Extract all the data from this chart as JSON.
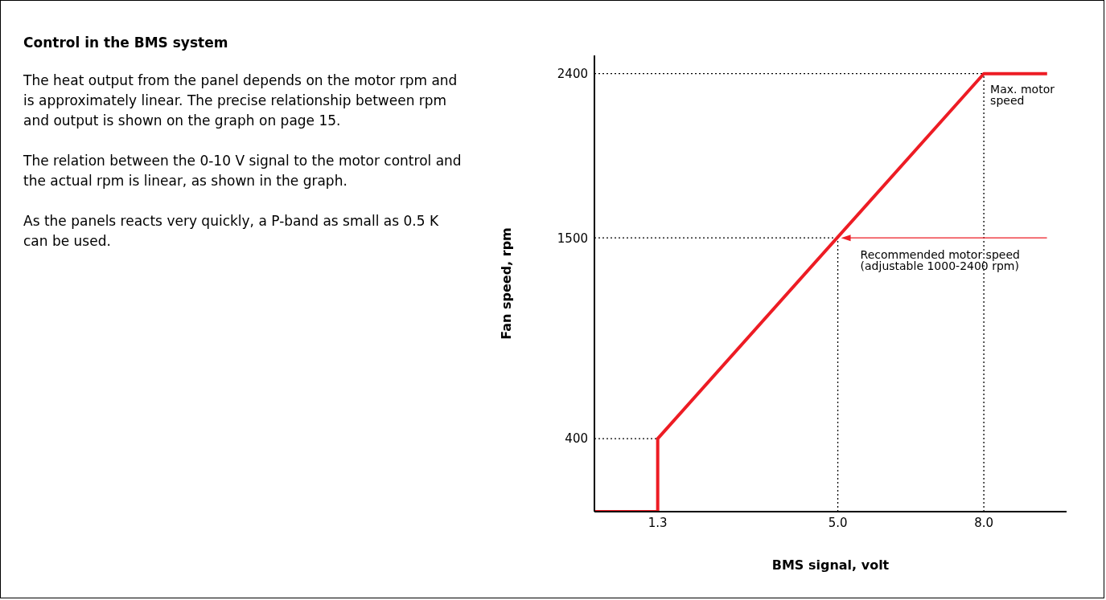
{
  "chart_data": {
    "type": "line",
    "title": "Control in the BMS system",
    "xlabel": "BMS signal, volt",
    "ylabel": "Fan speed, rpm",
    "x": [
      0,
      1.3,
      1.3,
      8.0,
      9.3
    ],
    "series": [
      {
        "color": "#ed1c24",
        "values": [
          0,
          0,
          400,
          2400,
          2400
        ]
      }
    ],
    "xlim": [
      0,
      9.7
    ],
    "xticks": [
      1.3,
      {
        "value": 5,
        "label": "5.0"
      },
      {
        "value": 8,
        "label": "8.0"
      }
    ],
    "ylim": [
      0,
      2500
    ],
    "yticks": [
      400,
      1500,
      2400
    ],
    "marker": "none",
    "line_style": "solid",
    "ref_lines": [
      {
        "axis": "y",
        "value": 400,
        "line_style": "dotted",
        "color": "#000000"
      },
      {
        "axis": "y",
        "value": 1500,
        "line_style": "dotted",
        "color": "#000000"
      },
      {
        "axis": "y",
        "value": 2400,
        "line_style": "dotted",
        "color": "#000000"
      },
      {
        "axis": "x",
        "value": 5,
        "line_style": "dotted",
        "color": "#000000"
      },
      {
        "axis": "x",
        "value": 8,
        "line_style": "dotted",
        "color": "#000000"
      }
    ],
    "annotations": [
      "The heat output from the panel depends on the motor rpm and is approximately linear. The precise relationship between rpm and output is shown on the graph on page 15.",
      "The relation between the 0-10 V signal to the motor control and the actual rpm is linear, as shown in the graph.",
      "As the panels reacts very quickly, a P-band as small as 0.5 K can be used.",
      {
        "text": "Max. motor speed",
        "x": 8.0,
        "y": 2400
      },
      {
        "text": "Recommended motor speed (adjustable 1000-2400 rpm)",
        "x": 5,
        "y": 1500
      }
    ]
  }
}
